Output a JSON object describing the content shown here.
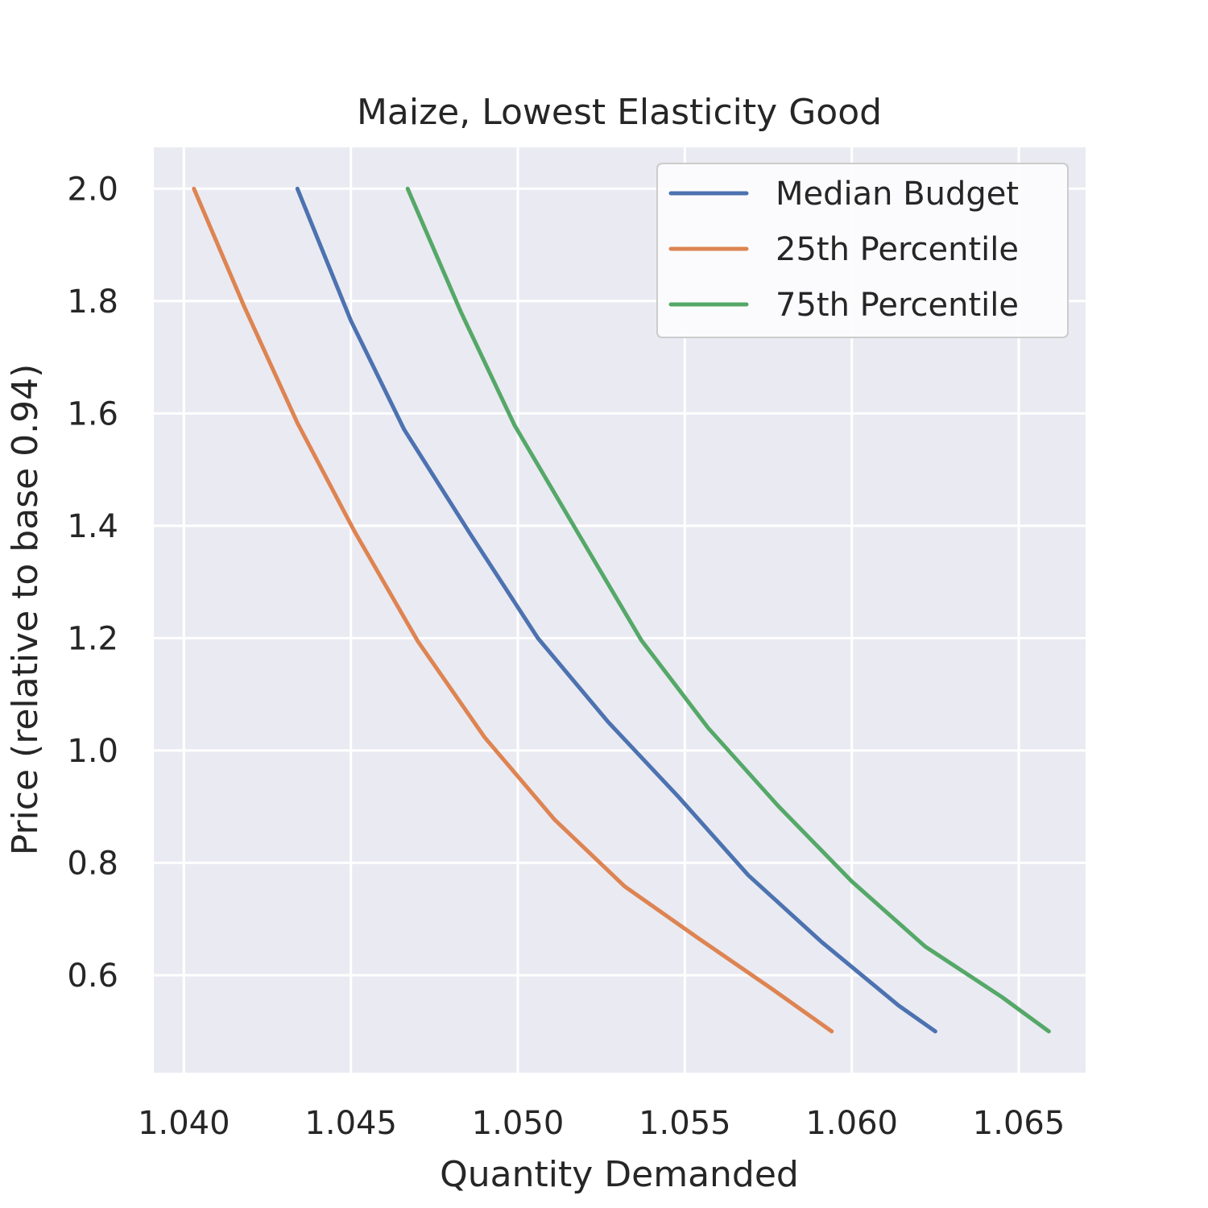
{
  "chart_data": {
    "type": "line",
    "title": "Maize, Lowest Elasticity Good",
    "xlabel": "Quantity Demanded",
    "ylabel": "Price (relative to base 0.94)",
    "xlim": [
      1.0391,
      1.067
    ],
    "ylim": [
      0.4265,
      2.0735
    ],
    "xticks": [
      1.04,
      1.045,
      1.05,
      1.055,
      1.06,
      1.065
    ],
    "xtick_labels": [
      "1.040",
      "1.045",
      "1.050",
      "1.055",
      "1.060",
      "1.065"
    ],
    "yticks": [
      0.6,
      0.8,
      1.0,
      1.2,
      1.4,
      1.6,
      1.8,
      2.0
    ],
    "ytick_labels": [
      "0.6",
      "0.8",
      "1.0",
      "1.2",
      "1.4",
      "1.6",
      "1.8",
      "2.0"
    ],
    "grid": true,
    "legend_position": "top-right",
    "series": [
      {
        "name": "Median Budget",
        "color": "#4c72b0",
        "x": [
          1.0434,
          1.045,
          1.0466,
          1.0486,
          1.0506,
          1.0527,
          1.0548,
          1.0569,
          1.0591,
          1.0614,
          1.0625
        ],
        "y": [
          2.0,
          1.765,
          1.571,
          1.383,
          1.2,
          1.051,
          0.918,
          0.778,
          0.659,
          0.546,
          0.5
        ]
      },
      {
        "name": "25th Percentile",
        "color": "#dd8452",
        "x": [
          1.0403,
          1.0418,
          1.0434,
          1.0451,
          1.047,
          1.049,
          1.0511,
          1.0532,
          1.0554,
          1.0576,
          1.0594
        ],
        "y": [
          2.0,
          1.791,
          1.583,
          1.391,
          1.195,
          1.024,
          0.877,
          0.758,
          0.666,
          0.576,
          0.5
        ]
      },
      {
        "name": "75th Percentile",
        "color": "#55a868",
        "x": [
          1.0467,
          1.0483,
          1.0499,
          1.0518,
          1.0537,
          1.0557,
          1.0578,
          1.06,
          1.0622,
          1.0645,
          1.0659
        ],
        "y": [
          2.0,
          1.78,
          1.579,
          1.387,
          1.196,
          1.04,
          0.901,
          0.767,
          0.651,
          0.561,
          0.5
        ]
      }
    ]
  }
}
